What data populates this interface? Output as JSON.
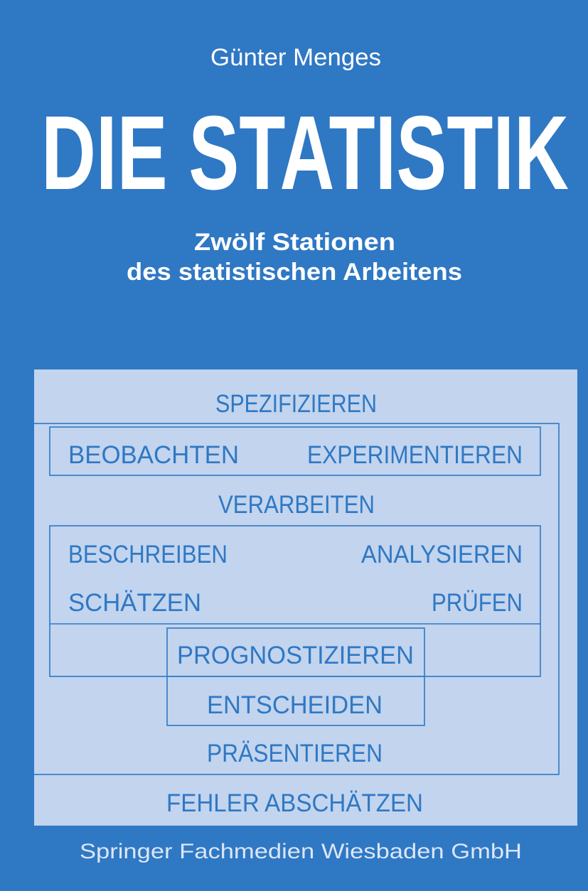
{
  "author": "Günter Menges",
  "title": "DIE STATISTIK",
  "subtitle": [
    "Zwölf Stationen",
    "des statistischen Arbeitens"
  ],
  "diagram": {
    "items": [
      "SPEZIFIZIEREN",
      "BEOBACHTEN",
      "EXPERIMENTIEREN",
      "VERARBEITEN",
      "BESCHREIBEN",
      "ANALYSIEREN",
      "SCHÄTZEN",
      "PRÜFEN",
      "PROGNOSTIZIEREN",
      "ENTSCHEIDEN",
      "PRÄSENTIEREN",
      "FEHLER ABSCHÄTZEN"
    ]
  },
  "publisher": "Springer Fachmedien Wiesbaden GmbH"
}
